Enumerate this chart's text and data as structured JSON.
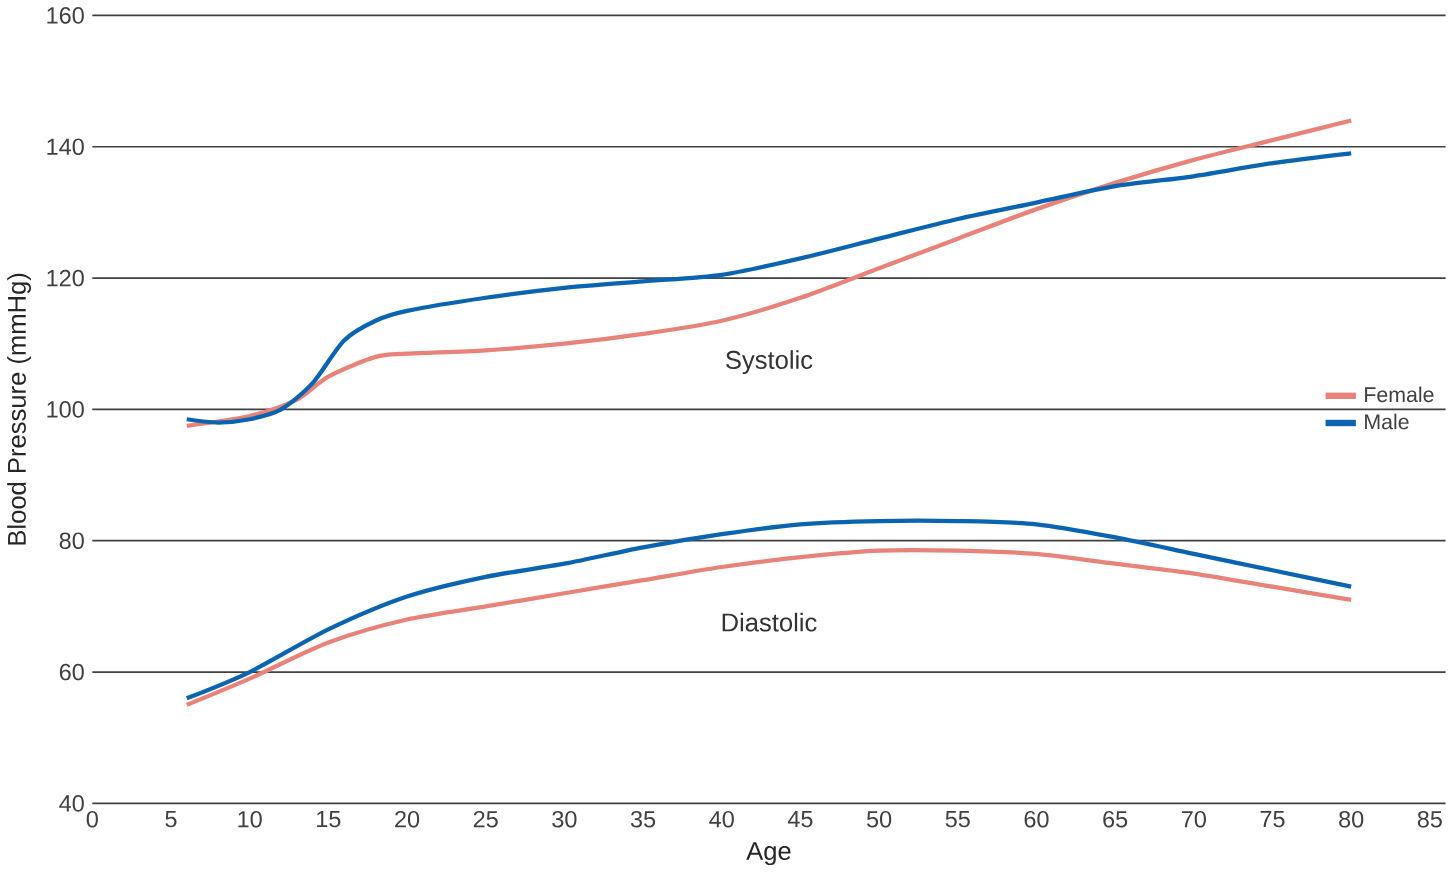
{
  "chart_data": {
    "type": "line",
    "xlabel": "Age",
    "ylabel": "Blood Pressure (mmHg)",
    "xlim": [
      0,
      86
    ],
    "xticks": [
      0,
      5,
      10,
      15,
      20,
      25,
      30,
      35,
      40,
      45,
      50,
      55,
      60,
      65,
      70,
      75,
      80,
      85
    ],
    "ylim": [
      40,
      160
    ],
    "yticks": [
      40,
      60,
      80,
      100,
      120,
      140,
      160
    ],
    "grid": "y",
    "legend": "right",
    "line_style": "solid",
    "marker": "none",
    "annotations": [
      "Systolic",
      "Diastolic"
    ],
    "series": [
      {
        "name": "Female",
        "color": "#e8837a",
        "x": [
          6,
          10,
          13,
          15,
          18,
          20,
          25,
          30,
          35,
          40,
          45,
          50,
          55,
          60,
          65,
          70,
          75,
          80
        ],
        "values": [
          97.5,
          99,
          101.5,
          105,
          108,
          108.5,
          109,
          110,
          111.5,
          113.5,
          117,
          121.5,
          126,
          130.5,
          134.5,
          138,
          141,
          144
        ]
      },
      {
        "name": "Male",
        "color": "#0a64b0",
        "x": [
          6,
          8,
          10,
          12,
          14,
          16,
          18,
          20,
          25,
          30,
          35,
          40,
          45,
          50,
          55,
          60,
          65,
          70,
          75,
          80
        ],
        "values": [
          98.5,
          98,
          98.5,
          100,
          104,
          110.5,
          113.5,
          115,
          117,
          118.5,
          119.5,
          120.5,
          123,
          126,
          129,
          131.5,
          134,
          135.5,
          137.5,
          139
        ]
      },
      {
        "color": "#e8837a",
        "x": [
          6,
          10,
          15,
          20,
          25,
          30,
          35,
          40,
          45,
          50,
          55,
          60,
          65,
          70,
          75,
          80
        ],
        "values": [
          55,
          59,
          64.5,
          68,
          70,
          72,
          74,
          76,
          77.5,
          78.5,
          78.5,
          78,
          76.5,
          75,
          73,
          71
        ]
      },
      {
        "color": "#0a64b0",
        "x": [
          6,
          10,
          15,
          20,
          25,
          30,
          35,
          40,
          45,
          50,
          55,
          60,
          65,
          70,
          75,
          80
        ],
        "values": [
          56,
          60,
          66.5,
          71.5,
          74.5,
          76.5,
          79,
          81,
          82.5,
          83,
          83,
          82.5,
          80.5,
          78,
          75.5,
          73
        ]
      }
    ]
  }
}
